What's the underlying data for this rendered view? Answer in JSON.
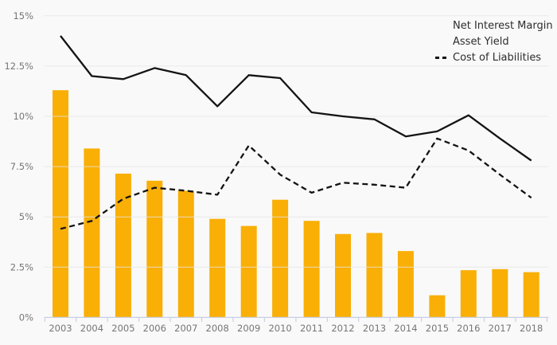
{
  "chart_data": {
    "type": "bar",
    "subtype": "combo-bar-line",
    "title": "",
    "xlabel": "",
    "ylabel": "",
    "categories": [
      "2003",
      "2004",
      "2005",
      "2006",
      "2007",
      "2008",
      "2009",
      "2010",
      "2011",
      "2012",
      "2013",
      "2014",
      "2015",
      "2016",
      "2017",
      "2018"
    ],
    "series": [
      {
        "name": "Net Interest Margin",
        "type": "bar",
        "color": "#F9AF05",
        "values": [
          11.3,
          8.4,
          7.15,
          6.8,
          6.3,
          4.9,
          4.55,
          5.85,
          4.8,
          4.15,
          4.2,
          3.3,
          1.1,
          2.35,
          2.4,
          2.25
        ]
      },
      {
        "name": "Asset Yield",
        "type": "line",
        "style": "solid",
        "color": "#141414",
        "values": [
          14.0,
          12.0,
          11.85,
          12.4,
          12.05,
          10.5,
          12.05,
          11.9,
          10.2,
          10.0,
          9.85,
          9.0,
          9.25,
          10.05,
          8.9,
          7.8
        ]
      },
      {
        "name": "Cost of Liabilities",
        "type": "line",
        "style": "dashed",
        "color": "#141414",
        "values": [
          4.4,
          4.8,
          5.9,
          6.45,
          6.3,
          6.1,
          8.55,
          7.1,
          6.2,
          6.7,
          6.6,
          6.45,
          8.9,
          8.3,
          7.1,
          5.95
        ]
      }
    ],
    "ylim": [
      0,
      15
    ],
    "yticks": [
      0,
      2.5,
      5,
      7.5,
      10,
      12.5,
      15
    ],
    "ytick_labels": [
      "0%",
      "2.5%",
      "5%",
      "7.5%",
      "10%",
      "12.5%",
      "15%"
    ],
    "grid": "horizontal",
    "legend_position": "top-right"
  },
  "colors": {
    "background": "#f9f9f9",
    "bar": "#F9AF05",
    "line": "#141414",
    "gridline": "#e5e5e5",
    "axis": "#c9d0e6",
    "tick_label": "#767676",
    "legend_text": "#2d2d2d"
  }
}
